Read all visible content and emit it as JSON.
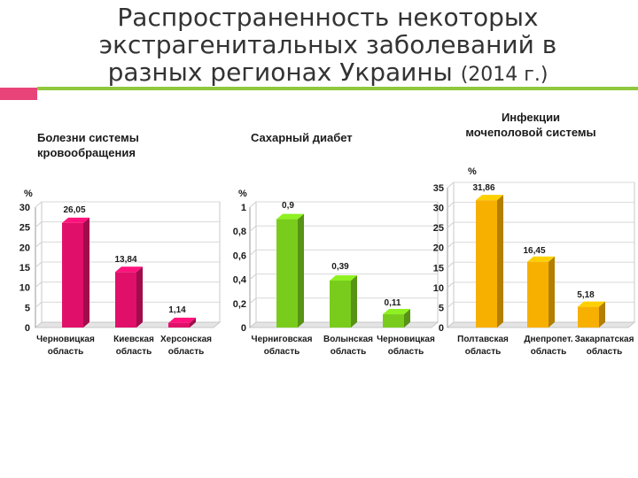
{
  "title": {
    "line1": "Распространенность некоторых",
    "line2": "экстрагенитальных заболеваний в",
    "line3": "разных регионах Украины",
    "line3_suffix": "(2014 г.)"
  },
  "colors": {
    "accent_pink": "#e8447a",
    "accent_green": "#8fc83c"
  },
  "chart_data": [
    {
      "type": "bar",
      "title": [
        "Болезни системы",
        "кровообращения"
      ],
      "ylabel": "%",
      "ylim": [
        0,
        30
      ],
      "yticks": [
        "0",
        "5",
        "10",
        "15",
        "20",
        "25",
        "30"
      ],
      "categories": [
        [
          "Черновицкая",
          "область"
        ],
        [
          "Киевская",
          "область"
        ],
        [
          "Херсонская",
          "область"
        ]
      ],
      "values": [
        26.05,
        13.84,
        1.14
      ],
      "value_labels": [
        "26,05",
        "13,84",
        "1,14"
      ],
      "color": "#e0106a"
    },
    {
      "type": "bar",
      "title": [
        "Сахарный диабет"
      ],
      "ylabel": "%",
      "ylim": [
        0,
        1
      ],
      "yticks": [
        "0",
        "0,2",
        "0,4",
        "0,6",
        "0,8",
        "1"
      ],
      "categories": [
        [
          "Черниговская",
          "область"
        ],
        [
          "Волынская",
          "область"
        ],
        [
          "Черновицкая",
          "область"
        ]
      ],
      "values": [
        0.9,
        0.39,
        0.11
      ],
      "value_labels": [
        "0,9",
        "0,39",
        "0,11"
      ],
      "color": "#79cc1c"
    },
    {
      "type": "bar",
      "title": [
        "Инфекции",
        "мочеполовой системы"
      ],
      "ylabel": "%",
      "ylim": [
        0,
        35
      ],
      "yticks": [
        "0",
        "5",
        "10",
        "15",
        "20",
        "25",
        "30",
        "35"
      ],
      "categories": [
        [
          "Полтавская",
          "область"
        ],
        [
          "Днепропет.",
          "область"
        ],
        [
          "Закарпатская",
          "область"
        ]
      ],
      "values": [
        31.86,
        16.45,
        5.18
      ],
      "value_labels": [
        "31,86",
        "16,45",
        "5,18"
      ],
      "color": "#f7b000"
    }
  ]
}
